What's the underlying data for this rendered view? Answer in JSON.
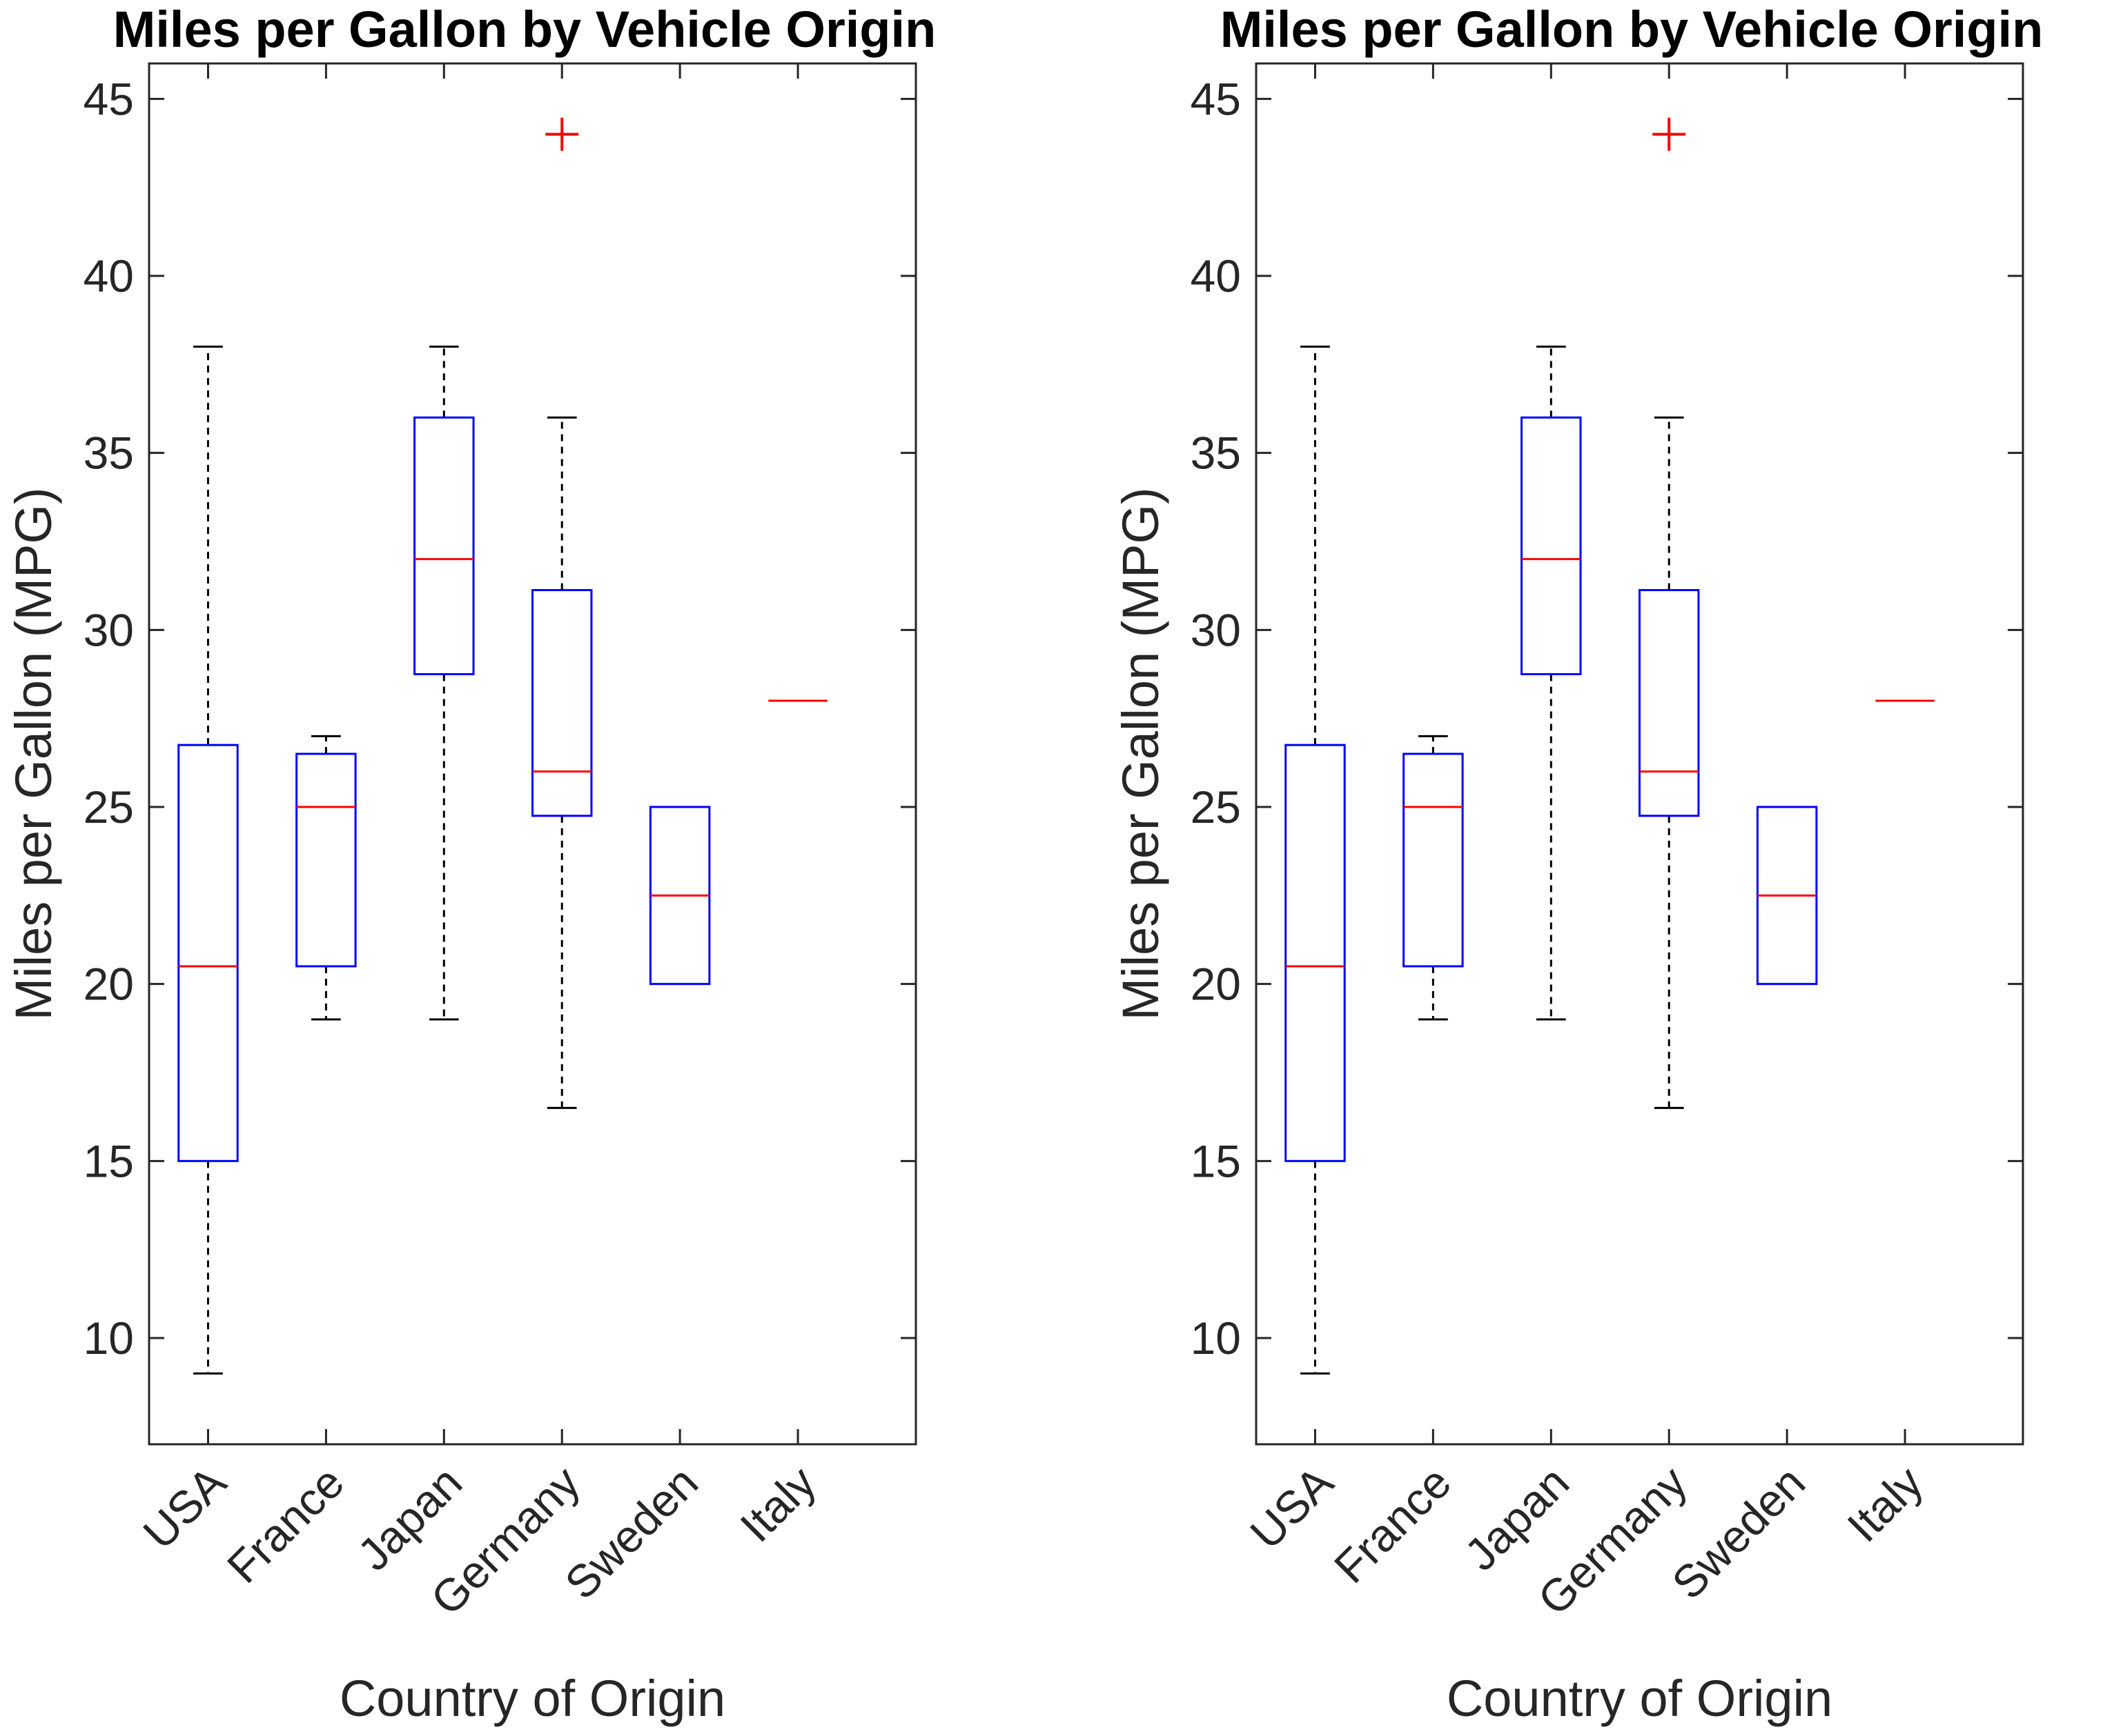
{
  "colors": {
    "box": "#0000ff",
    "median": "#ff0000",
    "whisker": "#000000",
    "outlier": "#ff0000",
    "axis": "#262626"
  },
  "chart_data": [
    {
      "type": "boxplot",
      "title": "Miles per Gallon by Vehicle Origin",
      "xlabel": "Country of Origin",
      "ylabel": "Miles per Gallon (MPG)",
      "ylim": [
        7,
        46
      ],
      "yticks": [
        10,
        15,
        20,
        25,
        30,
        35,
        40,
        45
      ],
      "categories": [
        "USA",
        "France",
        "Japan",
        "Germany",
        "Sweden",
        "Italy"
      ],
      "boxes": [
        {
          "min": 9,
          "q1": 15,
          "median": 20.5,
          "q3": 26.75,
          "max": 38,
          "outliers": []
        },
        {
          "min": 19,
          "q1": 20.5,
          "median": 25,
          "q3": 26.5,
          "max": 27,
          "outliers": []
        },
        {
          "min": 19,
          "q1": 28.75,
          "median": 32,
          "q3": 36,
          "max": 38,
          "outliers": []
        },
        {
          "min": 16.5,
          "q1": 24.75,
          "median": 26,
          "q3": 31.125,
          "max": 36,
          "outliers": [
            44
          ]
        },
        {
          "min": 20,
          "q1": 20,
          "median": 22.5,
          "q3": 25,
          "max": 25,
          "outliers": []
        },
        {
          "min": 28,
          "q1": 28,
          "median": 28,
          "q3": 28,
          "max": 28,
          "outliers": []
        }
      ]
    },
    {
      "type": "boxplot",
      "title": "Miles per Gallon by Vehicle Origin",
      "xlabel": "Country of Origin",
      "ylabel": "Miles per Gallon (MPG)",
      "ylim": [
        7,
        46
      ],
      "yticks": [
        10,
        15,
        20,
        25,
        30,
        35,
        40,
        45
      ],
      "categories": [
        "USA",
        "France",
        "Japan",
        "Germany",
        "Sweden",
        "Italy"
      ],
      "boxes": [
        {
          "min": 9,
          "q1": 15,
          "median": 20.5,
          "q3": 26.75,
          "max": 38,
          "outliers": []
        },
        {
          "min": 19,
          "q1": 20.5,
          "median": 25,
          "q3": 26.5,
          "max": 27,
          "outliers": []
        },
        {
          "min": 19,
          "q1": 28.75,
          "median": 32,
          "q3": 36,
          "max": 38,
          "outliers": []
        },
        {
          "min": 16.5,
          "q1": 24.75,
          "median": 26,
          "q3": 31.125,
          "max": 36,
          "outliers": [
            44
          ]
        },
        {
          "min": 20,
          "q1": 20,
          "median": 22.5,
          "q3": 25,
          "max": 25,
          "outliers": []
        },
        {
          "min": 28,
          "q1": 28,
          "median": 28,
          "q3": 28,
          "max": 28,
          "outliers": []
        }
      ]
    }
  ]
}
